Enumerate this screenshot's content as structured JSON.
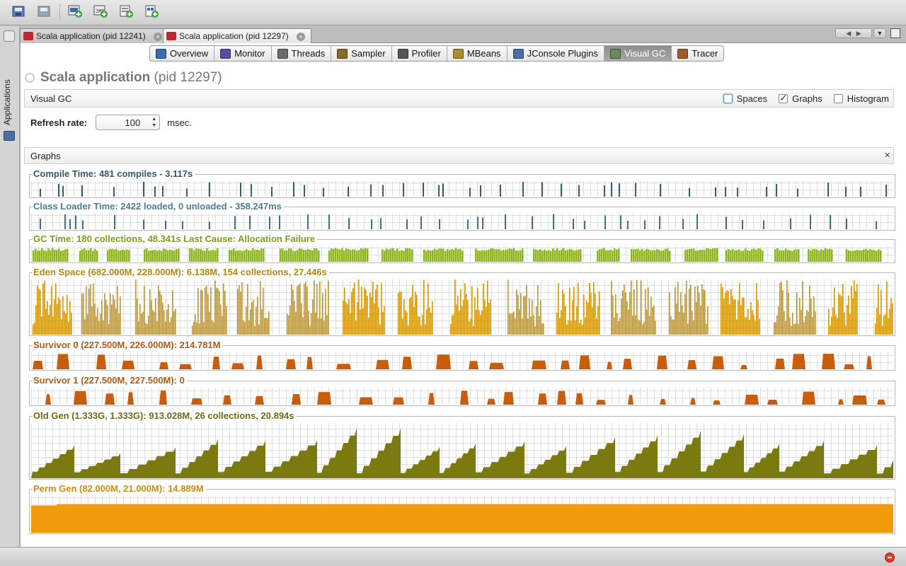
{
  "toolbar": {
    "buttons": [
      {
        "name": "open-snapshot-icon"
      },
      {
        "name": "save-snapshot-icon"
      },
      {
        "name": "add-jmx-connection-icon"
      },
      {
        "name": "add-remote-host-icon"
      },
      {
        "name": "load-core-dump-icon"
      },
      {
        "name": "add-snapshot-icon"
      }
    ]
  },
  "sidebar": {
    "label": "Applications"
  },
  "doc_tabs": [
    {
      "label": "Scala application (pid 12241)",
      "active": false
    },
    {
      "label": "Scala application (pid 12297)",
      "active": true
    }
  ],
  "tab_close_glyph": "×",
  "view_tabs": [
    {
      "label": "Overview",
      "icon": "overview-icon",
      "active": false
    },
    {
      "label": "Monitor",
      "icon": "monitor-icon",
      "active": false
    },
    {
      "label": "Threads",
      "icon": "threads-icon",
      "active": false
    },
    {
      "label": "Sampler",
      "icon": "sampler-icon",
      "active": false
    },
    {
      "label": "Profiler",
      "icon": "profiler-icon",
      "active": false
    },
    {
      "label": "MBeans",
      "icon": "mbeans-icon",
      "active": false
    },
    {
      "label": "JConsole Plugins",
      "icon": "jconsole-plugins-icon",
      "active": false
    },
    {
      "label": "Visual GC",
      "icon": "visual-gc-icon",
      "active": true
    },
    {
      "label": "Tracer",
      "icon": "tracer-icon",
      "active": false
    }
  ],
  "app_header": {
    "title": "Scala application",
    "pid": "(pid 12297)"
  },
  "visual_gc": {
    "label": "Visual GC",
    "spaces_label": "Spaces",
    "spaces_checked": false,
    "graphs_label": "Graphs",
    "graphs_checked": true,
    "histogram_label": "Histogram",
    "histogram_checked": false
  },
  "refresh": {
    "label": "Refresh rate:",
    "value": "100",
    "unit": "msec."
  },
  "graphs_panel": {
    "label": "Graphs",
    "close_glyph": "×"
  },
  "graphs": [
    {
      "id": "compile",
      "title": "Compile Time: 481 compiles - 3.117s",
      "color": "#2f5f74",
      "title_color": "#36586c",
      "kind": "spikes"
    },
    {
      "id": "classloader",
      "title": "Class Loader Time: 2422 loaded, 0 unloaded - 358.247ms",
      "color": "#3e6f8a",
      "title_color": "#4a7d98",
      "kind": "spikes"
    },
    {
      "id": "gctime",
      "title": "GC Time: 180 collections, 48.341s  Last Cause: Allocation Failure",
      "color": "#8cb51a",
      "title_color": "#7aa017",
      "kind": "blocks"
    },
    {
      "id": "eden",
      "title": "Eden Space (682.000M, 228.000M): 6.138M, 154 collections, 27.446s",
      "color": "#cc9612",
      "title_color": "#b7860f",
      "kind": "eden"
    },
    {
      "id": "survivor0",
      "title": "Survivor 0 (227.500M, 226.000M): 214.781M",
      "color": "#c85d0c",
      "title_color": "#b35a10",
      "kind": "humps"
    },
    {
      "id": "survivor1",
      "title": "Survivor 1 (227.500M, 227.500M): 0",
      "color": "#c85d0c",
      "title_color": "#b35a10",
      "kind": "humps"
    },
    {
      "id": "oldgen",
      "title": "Old Gen (1.333G, 1.333G): 913.028M, 26 collections, 20.894s",
      "color": "#7b7a10",
      "title_color": "#6f6c12",
      "kind": "saw"
    },
    {
      "id": "permgen",
      "title": "Perm Gen (82.000M, 21.000M): 14.889M",
      "color": "#f09a0c",
      "title_color": "#d08a10",
      "kind": "flat"
    }
  ]
}
